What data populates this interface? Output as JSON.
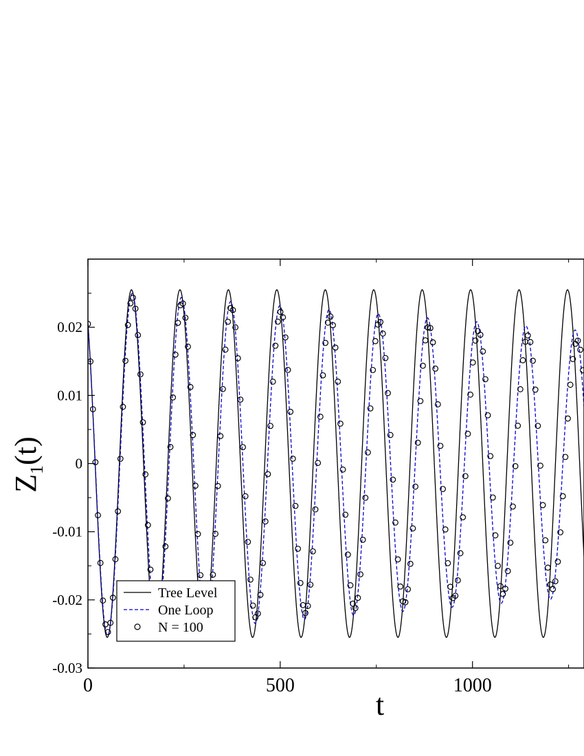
{
  "chart_data": {
    "type": "line",
    "xlabel": "t",
    "ylabel": {
      "main": "Z",
      "subscript": "1",
      "suffix": "(t)"
    },
    "xlim": [
      0,
      1290
    ],
    "ylim": [
      -0.03,
      0.03
    ],
    "x_ticks": [
      0,
      500,
      1000
    ],
    "x_tick_labels": [
      "0",
      "500",
      "1000"
    ],
    "y_ticks": [
      -0.03,
      -0.02,
      -0.01,
      0,
      0.01,
      0.02
    ],
    "y_tick_labels": [
      "-0.03",
      "-0.02",
      "-0.01",
      "0",
      "0.01",
      "0.02"
    ],
    "grid": false,
    "legend_position": "bottom-left",
    "series": [
      {
        "name": "Tree Level",
        "style": "solid",
        "color": "#000000",
        "model": {
          "kind": "cosine",
          "amplitude": 0.0255,
          "period": 126.0,
          "phase_t0": 0.0,
          "initial_value": 0.0205
        }
      },
      {
        "name": "One Loop",
        "style": "dashed",
        "color": "#0000cc",
        "model": {
          "kind": "damped_cosine",
          "amplitude_start": 0.0255,
          "amplitude_end": 0.0195,
          "period": 128.0,
          "initial_value": 0.0205
        }
      },
      {
        "name": "N = 100",
        "style": "markers",
        "marker": "circle",
        "color": "#000000",
        "sample_step": 6.5,
        "model": {
          "kind": "damped_cosine",
          "amplitude_start": 0.025,
          "amplitude_end": 0.018,
          "period": 128.5,
          "initial_value": 0.0205
        }
      }
    ]
  }
}
